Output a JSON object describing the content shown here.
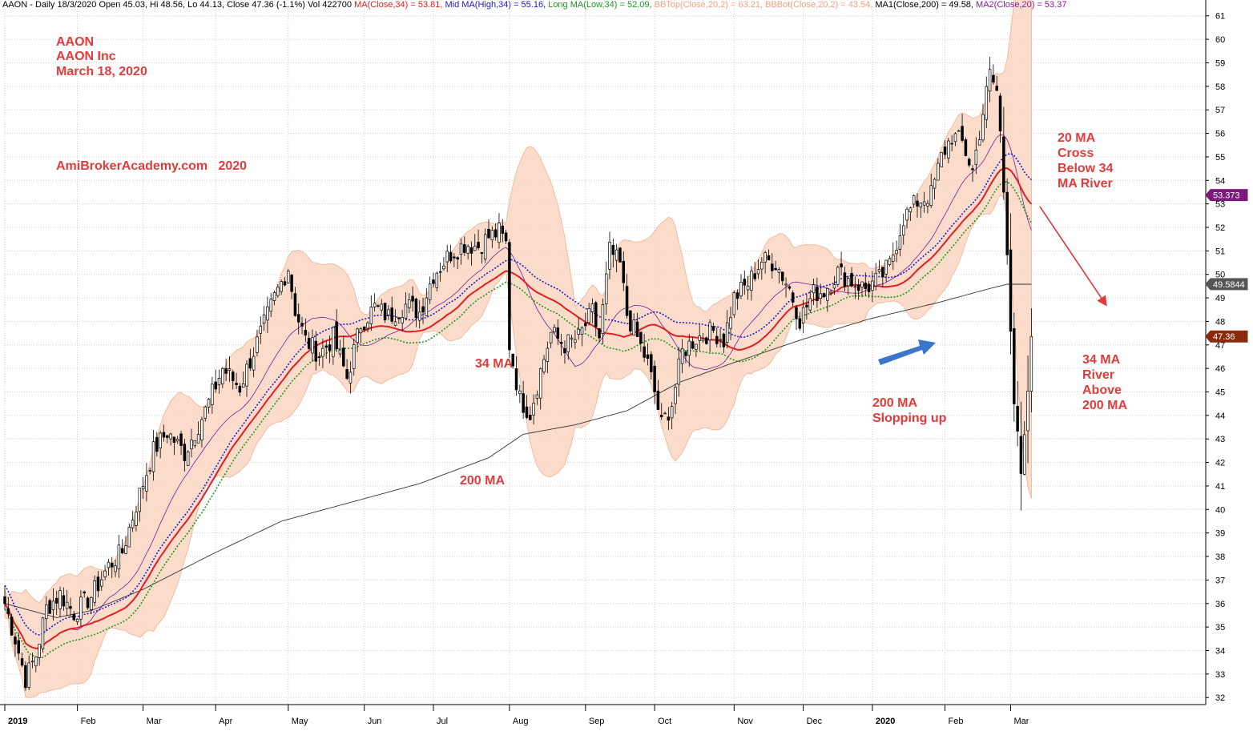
{
  "header": {
    "main": "AAON - Daily 18/3/2020 Open 45.03, Hi 48.56, Lo 44.13, Close 47.36 (-1.1%) Vol 422700",
    "items": [
      {
        "text": "MA(Close,34) = 53.81,",
        "color": "#e02020"
      },
      {
        "text": "Mid MA(High,34) = 55.16,",
        "color": "#1a1ad0"
      },
      {
        "text": "Long MA(Low,34) = 52.09,",
        "color": "#1a9a1a"
      },
      {
        "text": "BBTop(Close,20,2) = 63.21,",
        "color": "#f0a080"
      },
      {
        "text": "BBBot(Close,20,2) = 43.54,",
        "color": "#f0a080"
      },
      {
        "text": "MA1(Close,200) = 49.58,",
        "color": "#000000"
      },
      {
        "text": "MA2(Close,20) = 53.37",
        "color": "#8a1a9a"
      }
    ]
  },
  "annotations": {
    "ticker": "AAON",
    "company": "AAON Inc",
    "date": "March 18, 2020",
    "site": "AmiBrokerAcademy.com   2020",
    "ma34": "34 MA",
    "ma200": "200 MA",
    "slope": [
      "200 MA",
      "Slopping up"
    ],
    "cross": [
      "20 MA",
      "Cross",
      "Below 34",
      "MA River"
    ],
    "river": [
      "34 MA",
      "River",
      "Above",
      "200 MA"
    ]
  },
  "flags": [
    {
      "label": "53.373",
      "value": 53.373,
      "color": "#7a1a7a"
    },
    {
      "label": "49.5844",
      "value": 49.5844,
      "color": "#555555"
    },
    {
      "label": "47.36",
      "value": 47.36,
      "color": "#8b2a0a"
    }
  ],
  "colors": {
    "ma34": "#e02020",
    "mid": "#1a1ad0",
    "long": "#1a9a1a",
    "ma200": "#333333",
    "ma20": "#7a1aa0",
    "band_fill": "#fbd9c6",
    "band_line": "#f0a888",
    "candle": "#000000",
    "note": "#e03c3c",
    "arrow": "#2f6fc8"
  },
  "chart_data": {
    "type": "candlestick",
    "ticker": "AAON",
    "ylim": [
      31.7,
      61.4
    ],
    "y_ticks": [
      32,
      33,
      34,
      35,
      36,
      37,
      38,
      39,
      40,
      41,
      42,
      43,
      44,
      45,
      46,
      47,
      48,
      49,
      50,
      51,
      52,
      53,
      54,
      55,
      56,
      57,
      58,
      59,
      60,
      61
    ],
    "months": [
      {
        "label": "2019",
        "day": 0,
        "bold": true
      },
      {
        "label": "Feb",
        "day": 21
      },
      {
        "label": "Mar",
        "day": 40
      },
      {
        "label": "Apr",
        "day": 61
      },
      {
        "label": "May",
        "day": 82
      },
      {
        "label": "Jun",
        "day": 104
      },
      {
        "label": "Jul",
        "day": 124
      },
      {
        "label": "Aug",
        "day": 146
      },
      {
        "label": "Sep",
        "day": 168
      },
      {
        "label": "Oct",
        "day": 188
      },
      {
        "label": "Nov",
        "day": 211
      },
      {
        "label": "Dec",
        "day": 231
      },
      {
        "label": "2020",
        "day": 251,
        "bold": true
      },
      {
        "label": "Feb",
        "day": 272
      },
      {
        "label": "Mar",
        "day": 291
      }
    ],
    "num_days": 305,
    "close_anchors": [
      [
        0,
        36
      ],
      [
        3,
        34.5
      ],
      [
        6,
        32.8
      ],
      [
        9,
        33.8
      ],
      [
        12,
        35.8
      ],
      [
        16,
        36.4
      ],
      [
        20,
        35.6
      ],
      [
        25,
        36.3
      ],
      [
        30,
        37.6
      ],
      [
        34,
        38.2
      ],
      [
        38,
        40.2
      ],
      [
        43,
        42.5
      ],
      [
        47,
        43.3
      ],
      [
        52,
        42.4
      ],
      [
        58,
        44.2
      ],
      [
        63,
        46
      ],
      [
        68,
        45.2
      ],
      [
        73,
        47.1
      ],
      [
        78,
        49
      ],
      [
        82,
        50.3
      ],
      [
        84,
        48.5
      ],
      [
        87,
        47.2
      ],
      [
        91,
        46.6
      ],
      [
        95,
        47.3
      ],
      [
        99,
        45.6
      ],
      [
        103,
        47.9
      ],
      [
        107,
        48.6
      ],
      [
        111,
        48.2
      ],
      [
        116,
        48.7
      ],
      [
        120,
        48.4
      ],
      [
        124,
        50
      ],
      [
        129,
        50.9
      ],
      [
        133,
        51.3
      ],
      [
        137,
        51.2
      ],
      [
        140,
        51.6
      ],
      [
        143,
        51.8
      ],
      [
        145,
        51.3
      ],
      [
        146,
        47
      ],
      [
        149,
        44.7
      ],
      [
        152,
        44.1
      ],
      [
        155,
        45.9
      ],
      [
        158,
        47.5
      ],
      [
        162,
        47
      ],
      [
        166,
        47.3
      ],
      [
        170,
        48.4
      ],
      [
        172,
        47.3
      ],
      [
        175,
        51
      ],
      [
        178,
        50.4
      ],
      [
        180,
        48.3
      ],
      [
        183,
        47.3
      ],
      [
        186,
        46.2
      ],
      [
        188,
        45
      ],
      [
        190,
        43.6
      ],
      [
        193,
        44.5
      ],
      [
        196,
        46.7
      ],
      [
        200,
        47.3
      ],
      [
        205,
        47.6
      ],
      [
        208,
        47.2
      ],
      [
        211,
        49
      ],
      [
        215,
        49.6
      ],
      [
        219,
        50.6
      ],
      [
        223,
        50.5
      ],
      [
        227,
        49.4
      ],
      [
        230,
        48.1
      ],
      [
        234,
        49.2
      ],
      [
        237,
        49.3
      ],
      [
        241,
        50.1
      ],
      [
        245,
        49.7
      ],
      [
        249,
        49.4
      ],
      [
        253,
        49.8
      ],
      [
        256,
        50.4
      ],
      [
        260,
        52.4
      ],
      [
        264,
        53.1
      ],
      [
        268,
        53.4
      ],
      [
        271,
        55
      ],
      [
        274,
        55.9
      ],
      [
        277,
        55.6
      ],
      [
        280,
        54.4
      ],
      [
        283,
        56.9
      ],
      [
        285,
        58.5
      ],
      [
        287,
        57.8
      ],
      [
        288,
        56
      ],
      [
        290,
        51.2
      ],
      [
        292,
        44.6
      ],
      [
        294,
        41.3
      ],
      [
        295,
        42.8
      ],
      [
        297,
        47.36
      ]
    ],
    "ma200_anchors": [
      [
        0,
        36
      ],
      [
        15,
        35.4
      ],
      [
        25,
        35.7
      ],
      [
        40,
        36.6
      ],
      [
        60,
        38.1
      ],
      [
        80,
        39.5
      ],
      [
        100,
        40.3
      ],
      [
        120,
        41.1
      ],
      [
        140,
        42.2
      ],
      [
        150,
        43.2
      ],
      [
        165,
        43.6
      ],
      [
        180,
        44.2
      ],
      [
        195,
        45.4
      ],
      [
        210,
        46.2
      ],
      [
        230,
        47.2
      ],
      [
        250,
        48.1
      ],
      [
        270,
        48.8
      ],
      [
        285,
        49.4
      ],
      [
        290,
        49.58
      ]
    ],
    "series": [
      {
        "name": "MA(Close,34)",
        "value": 53.81
      },
      {
        "name": "Mid MA(High,34)",
        "value": 55.16
      },
      {
        "name": "Long MA(Low,34)",
        "value": 52.09
      },
      {
        "name": "BBTop(Close,20,2)",
        "value": 63.21
      },
      {
        "name": "BBBot(Close,20,2)",
        "value": 43.54
      },
      {
        "name": "MA1(Close,200)",
        "value": 49.58
      },
      {
        "name": "MA2(Close,20)",
        "value": 53.37
      }
    ],
    "last": {
      "open": 45.03,
      "high": 48.56,
      "low": 44.13,
      "close": 47.36
    }
  }
}
